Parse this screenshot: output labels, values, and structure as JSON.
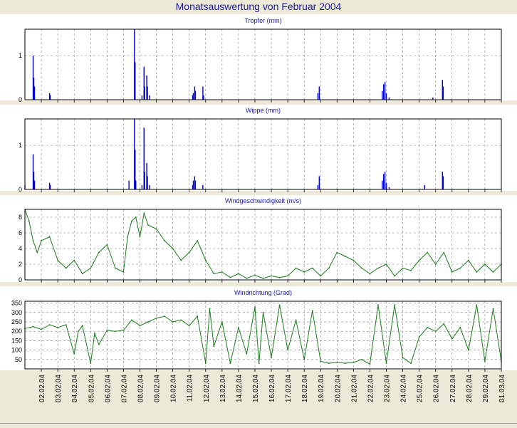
{
  "window": {
    "title": "Monatsauswertung von Februar 2004"
  },
  "colors": {
    "rain": "#0000cc",
    "wind": "#1a7a1a",
    "grid": "#808080",
    "title": "#1a1aa0"
  },
  "chart_data": [
    {
      "type": "bar",
      "title": "Tropfer (mm)",
      "ylim": [
        0,
        1.6
      ],
      "yticks": [
        0,
        1
      ],
      "xlim": [
        "2004-02-01T00:00",
        "2004-03-01T00:00"
      ],
      "points": [
        [
          "2004-02-01T12:00",
          1.0
        ],
        [
          "2004-02-01T13:00",
          0.5
        ],
        [
          "2004-02-01T14:00",
          0.3
        ],
        [
          "2004-02-02T12:00",
          0.15
        ],
        [
          "2004-02-02T13:00",
          0.1
        ],
        [
          "2004-02-07T16:00",
          1.6
        ],
        [
          "2004-02-07T17:00",
          0.85
        ],
        [
          "2004-02-08T03:00",
          0.1
        ],
        [
          "2004-02-08T06:00",
          0.75
        ],
        [
          "2004-02-08T07:00",
          0.3
        ],
        [
          "2004-02-08T10:00",
          0.55
        ],
        [
          "2004-02-08T11:00",
          0.3
        ],
        [
          "2004-02-08T14:00",
          0.1
        ],
        [
          "2004-02-11T05:00",
          0.1
        ],
        [
          "2004-02-11T06:00",
          0.15
        ],
        [
          "2004-02-11T08:00",
          0.3
        ],
        [
          "2004-02-11T09:00",
          0.2
        ],
        [
          "2004-02-11T20:00",
          0.3
        ],
        [
          "2004-02-11T21:00",
          0.1
        ],
        [
          "2004-02-18T20:00",
          0.15
        ],
        [
          "2004-02-18T22:00",
          0.3
        ],
        [
          "2004-02-22T18:00",
          0.2
        ],
        [
          "2004-02-22T20:00",
          0.35
        ],
        [
          "2004-02-22T22:00",
          0.4
        ],
        [
          "2004-02-23T00:00",
          0.15
        ],
        [
          "2004-02-23T04:00",
          0.05
        ],
        [
          "2004-02-25T20:00",
          0.05
        ],
        [
          "2004-02-26T10:00",
          0.45
        ],
        [
          "2004-02-26T11:00",
          0.3
        ]
      ]
    },
    {
      "type": "bar",
      "title": "Wippe (mm)",
      "ylim": [
        0,
        1.6
      ],
      "yticks": [
        0,
        1
      ],
      "xlim": [
        "2004-02-01T00:00",
        "2004-03-01T00:00"
      ],
      "points": [
        [
          "2004-02-01T00:00",
          0.1
        ],
        [
          "2004-02-01T12:00",
          0.8
        ],
        [
          "2004-02-01T13:00",
          0.4
        ],
        [
          "2004-02-01T14:00",
          0.2
        ],
        [
          "2004-02-02T12:00",
          0.15
        ],
        [
          "2004-02-02T13:00",
          0.1
        ],
        [
          "2004-02-07T08:00",
          0.2
        ],
        [
          "2004-02-07T16:00",
          1.6
        ],
        [
          "2004-02-07T17:00",
          0.9
        ],
        [
          "2004-02-07T18:00",
          0.2
        ],
        [
          "2004-02-08T03:00",
          0.1
        ],
        [
          "2004-02-08T06:00",
          1.4
        ],
        [
          "2004-02-08T07:00",
          0.4
        ],
        [
          "2004-02-08T10:00",
          0.6
        ],
        [
          "2004-02-08T11:00",
          0.3
        ],
        [
          "2004-02-08T14:00",
          0.1
        ],
        [
          "2004-02-11T05:00",
          0.1
        ],
        [
          "2004-02-11T06:00",
          0.2
        ],
        [
          "2004-02-11T08:00",
          0.3
        ],
        [
          "2004-02-11T09:00",
          0.2
        ],
        [
          "2004-02-11T20:00",
          0.1
        ],
        [
          "2004-02-18T20:00",
          0.1
        ],
        [
          "2004-02-18T22:00",
          0.3
        ],
        [
          "2004-02-22T18:00",
          0.2
        ],
        [
          "2004-02-22T20:00",
          0.35
        ],
        [
          "2004-02-22T22:00",
          0.4
        ],
        [
          "2004-02-23T00:00",
          0.15
        ],
        [
          "2004-02-23T04:00",
          0.05
        ],
        [
          "2004-02-25T08:00",
          0.1
        ],
        [
          "2004-02-26T10:00",
          0.4
        ],
        [
          "2004-02-26T11:00",
          0.3
        ]
      ]
    },
    {
      "type": "line",
      "title": "Windgeschwindigkeit (m/s)",
      "ylim": [
        0,
        9
      ],
      "yticks": [
        0,
        2,
        4,
        6,
        8
      ],
      "xlim": [
        "2004-02-01T00:00",
        "2004-03-01T00:00"
      ],
      "points": [
        [
          "2004-02-01T00:00",
          9.0
        ],
        [
          "2004-02-01T06:00",
          7.5
        ],
        [
          "2004-02-01T12:00",
          5.0
        ],
        [
          "2004-02-01T18:00",
          3.5
        ],
        [
          "2004-02-02T00:00",
          5.0
        ],
        [
          "2004-02-02T12:00",
          5.5
        ],
        [
          "2004-02-03T00:00",
          2.5
        ],
        [
          "2004-02-03T12:00",
          1.5
        ],
        [
          "2004-02-04T00:00",
          2.5
        ],
        [
          "2004-02-04T12:00",
          0.8
        ],
        [
          "2004-02-05T00:00",
          1.5
        ],
        [
          "2004-02-05T12:00",
          3.5
        ],
        [
          "2004-02-06T00:00",
          4.5
        ],
        [
          "2004-02-06T12:00",
          1.5
        ],
        [
          "2004-02-07T00:00",
          1.0
        ],
        [
          "2004-02-07T06:00",
          5.5
        ],
        [
          "2004-02-07T12:00",
          7.5
        ],
        [
          "2004-02-07T18:00",
          8.0
        ],
        [
          "2004-02-08T00:00",
          5.5
        ],
        [
          "2004-02-08T06:00",
          8.5
        ],
        [
          "2004-02-08T12:00",
          7.0
        ],
        [
          "2004-02-09T00:00",
          6.5
        ],
        [
          "2004-02-09T12:00",
          5.0
        ],
        [
          "2004-02-10T00:00",
          4.0
        ],
        [
          "2004-02-10T12:00",
          2.5
        ],
        [
          "2004-02-11T00:00",
          3.5
        ],
        [
          "2004-02-11T12:00",
          5.0
        ],
        [
          "2004-02-12T00:00",
          2.5
        ],
        [
          "2004-02-12T12:00",
          0.8
        ],
        [
          "2004-02-13T00:00",
          1.0
        ],
        [
          "2004-02-13T12:00",
          0.3
        ],
        [
          "2004-02-14T00:00",
          0.8
        ],
        [
          "2004-02-14T12:00",
          0.2
        ],
        [
          "2004-02-15T00:00",
          0.6
        ],
        [
          "2004-02-15T12:00",
          0.2
        ],
        [
          "2004-02-16T00:00",
          0.5
        ],
        [
          "2004-02-16T12:00",
          0.3
        ],
        [
          "2004-02-17T00:00",
          0.5
        ],
        [
          "2004-02-17T12:00",
          1.5
        ],
        [
          "2004-02-18T00:00",
          1.0
        ],
        [
          "2004-02-18T12:00",
          1.5
        ],
        [
          "2004-02-19T00:00",
          0.5
        ],
        [
          "2004-02-19T12:00",
          1.5
        ],
        [
          "2004-02-20T00:00",
          3.5
        ],
        [
          "2004-02-20T12:00",
          3.0
        ],
        [
          "2004-02-21T00:00",
          2.5
        ],
        [
          "2004-02-21T12:00",
          1.5
        ],
        [
          "2004-02-22T00:00",
          0.8
        ],
        [
          "2004-02-22T12:00",
          1.5
        ],
        [
          "2004-02-23T00:00",
          2.0
        ],
        [
          "2004-02-23T12:00",
          0.5
        ],
        [
          "2004-02-24T00:00",
          1.5
        ],
        [
          "2004-02-24T12:00",
          1.2
        ],
        [
          "2004-02-25T00:00",
          2.5
        ],
        [
          "2004-02-25T12:00",
          3.5
        ],
        [
          "2004-02-26T00:00",
          2.0
        ],
        [
          "2004-02-26T12:00",
          3.5
        ],
        [
          "2004-02-27T00:00",
          1.0
        ],
        [
          "2004-02-27T12:00",
          1.5
        ],
        [
          "2004-02-28T00:00",
          2.5
        ],
        [
          "2004-02-28T12:00",
          1.0
        ],
        [
          "2004-02-29T00:00",
          2.0
        ],
        [
          "2004-02-29T12:00",
          1.0
        ],
        [
          "2004-03-01T00:00",
          2.0
        ]
      ]
    },
    {
      "type": "line",
      "title": "Windrichtung (Grad)",
      "ylim": [
        0,
        360
      ],
      "yticks": [
        50,
        100,
        150,
        200,
        250,
        300,
        350
      ],
      "xlim": [
        "2004-02-01T00:00",
        "2004-03-01T00:00"
      ],
      "xticks": [
        "02.02.04",
        "03.02.04",
        "04.02.04",
        "05.02.04",
        "06.02.04",
        "07.02.04",
        "08.02.04",
        "09.02.04",
        "10.02.04",
        "11.02.04",
        "12.02.04",
        "13.02.04",
        "14.02.04",
        "15.02.04",
        "16.02.04",
        "17.02.04",
        "18.02.04",
        "19.02.04",
        "20.02.04",
        "21.02.04",
        "22.02.04",
        "23.02.04",
        "24.02.04",
        "25.02.04",
        "26.02.04",
        "27.02.04",
        "28.02.04",
        "29.02.04",
        "01.03.04"
      ],
      "points": [
        [
          "2004-02-01T00:00",
          215
        ],
        [
          "2004-02-01T12:00",
          225
        ],
        [
          "2004-02-02T00:00",
          210
        ],
        [
          "2004-02-02T12:00",
          235
        ],
        [
          "2004-02-03T00:00",
          220
        ],
        [
          "2004-02-03T12:00",
          235
        ],
        [
          "2004-02-04T00:00",
          80
        ],
        [
          "2004-02-04T06:00",
          200
        ],
        [
          "2004-02-04T12:00",
          230
        ],
        [
          "2004-02-05T00:00",
          30
        ],
        [
          "2004-02-05T06:00",
          190
        ],
        [
          "2004-02-05T12:00",
          130
        ],
        [
          "2004-02-06T00:00",
          205
        ],
        [
          "2004-02-06T12:00",
          200
        ],
        [
          "2004-02-07T00:00",
          205
        ],
        [
          "2004-02-07T12:00",
          260
        ],
        [
          "2004-02-08T00:00",
          230
        ],
        [
          "2004-02-08T12:00",
          250
        ],
        [
          "2004-02-09T00:00",
          270
        ],
        [
          "2004-02-09T12:00",
          280
        ],
        [
          "2004-02-10T00:00",
          250
        ],
        [
          "2004-02-10T12:00",
          260
        ],
        [
          "2004-02-11T00:00",
          230
        ],
        [
          "2004-02-11T12:00",
          280
        ],
        [
          "2004-02-12T00:00",
          30
        ],
        [
          "2004-02-12T06:00",
          320
        ],
        [
          "2004-02-12T12:00",
          120
        ],
        [
          "2004-02-13T00:00",
          250
        ],
        [
          "2004-02-13T12:00",
          30
        ],
        [
          "2004-02-14T00:00",
          220
        ],
        [
          "2004-02-14T12:00",
          80
        ],
        [
          "2004-02-15T00:00",
          330
        ],
        [
          "2004-02-15T06:00",
          30
        ],
        [
          "2004-02-15T12:00",
          300
        ],
        [
          "2004-02-16T00:00",
          60
        ],
        [
          "2004-02-16T12:00",
          340
        ],
        [
          "2004-02-17T00:00",
          100
        ],
        [
          "2004-02-17T12:00",
          260
        ],
        [
          "2004-02-18T00:00",
          50
        ],
        [
          "2004-02-18T12:00",
          310
        ],
        [
          "2004-02-19T00:00",
          40
        ],
        [
          "2004-02-19T12:00",
          30
        ],
        [
          "2004-02-20T00:00",
          35
        ],
        [
          "2004-02-20T12:00",
          30
        ],
        [
          "2004-02-21T00:00",
          35
        ],
        [
          "2004-02-21T12:00",
          50
        ],
        [
          "2004-02-22T00:00",
          25
        ],
        [
          "2004-02-22T12:00",
          340
        ],
        [
          "2004-02-23T00:00",
          30
        ],
        [
          "2004-02-23T12:00",
          340
        ],
        [
          "2004-02-24T00:00",
          60
        ],
        [
          "2004-02-24T12:00",
          30
        ],
        [
          "2004-02-25T00:00",
          170
        ],
        [
          "2004-02-25T12:00",
          220
        ],
        [
          "2004-02-26T00:00",
          200
        ],
        [
          "2004-02-26T12:00",
          240
        ],
        [
          "2004-02-27T00:00",
          160
        ],
        [
          "2004-02-27T12:00",
          220
        ],
        [
          "2004-02-28T00:00",
          100
        ],
        [
          "2004-02-28T12:00",
          340
        ],
        [
          "2004-02-29T00:00",
          40
        ],
        [
          "2004-02-29T12:00",
          320
        ],
        [
          "2004-03-01T00:00",
          40
        ]
      ]
    }
  ]
}
